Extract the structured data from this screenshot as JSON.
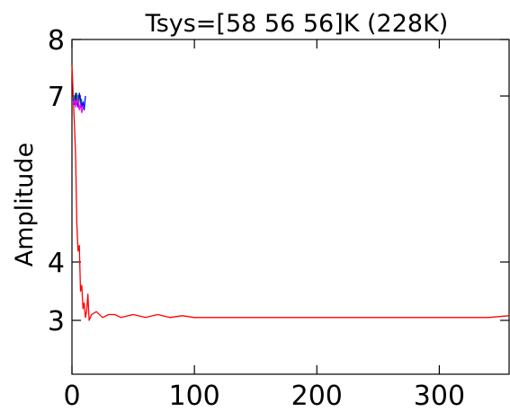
{
  "chart_data": {
    "type": "line",
    "title": "Tsys=[58 56 56]K (228K)",
    "xlabel": "",
    "ylabel": "Amplitude",
    "xlim": [
      0,
      357
    ],
    "ylim": [
      2,
      8
    ],
    "x_ticks": [
      0,
      100,
      200,
      300
    ],
    "y_ticks": [
      3,
      4,
      7,
      8
    ],
    "grid": false,
    "legend": "none",
    "colors": {
      "red": "#ff0000",
      "green": "#00b000",
      "blue": "#0000ff",
      "magenta": "#ff00ff",
      "axes": "#000000"
    },
    "series": [
      {
        "color": "#ff0000",
        "x": [
          0,
          1,
          2,
          3,
          4,
          5,
          6,
          7,
          8,
          9,
          10,
          11,
          12,
          13,
          14,
          16,
          20,
          25,
          30,
          35,
          40,
          50,
          60,
          70,
          80,
          90,
          100,
          120,
          140,
          160,
          180,
          200,
          220,
          240,
          260,
          280,
          300,
          320,
          340,
          357
        ],
        "y": [
          7.55,
          7.0,
          6.5,
          5.9,
          4.7,
          4.2,
          4.3,
          3.5,
          3.6,
          3.2,
          3.3,
          3.05,
          3.15,
          3.45,
          3.0,
          3.1,
          3.15,
          3.05,
          3.1,
          3.1,
          3.05,
          3.1,
          3.05,
          3.1,
          3.05,
          3.08,
          3.05,
          3.05,
          3.05,
          3.05,
          3.05,
          3.05,
          3.05,
          3.05,
          3.05,
          3.05,
          3.05,
          3.05,
          3.05,
          3.08
        ]
      },
      {
        "color": "#00b000",
        "x": [
          1,
          2,
          3,
          4,
          5,
          6,
          7,
          8
        ],
        "y": [
          6.9,
          7.0,
          6.85,
          7.05,
          6.9,
          7.0,
          6.85,
          6.95
        ]
      },
      {
        "color": "#0000ff",
        "x": [
          1,
          2,
          3,
          4,
          5,
          6,
          7,
          8,
          9,
          10,
          11
        ],
        "y": [
          6.95,
          6.85,
          7.05,
          6.9,
          6.8,
          7.05,
          6.95,
          6.8,
          6.9,
          6.75,
          7.0
        ]
      },
      {
        "color": "#ff00ff",
        "x": [
          1,
          2,
          3,
          4,
          5,
          6,
          7,
          8,
          9
        ],
        "y": [
          6.85,
          6.95,
          6.8,
          6.9,
          6.95,
          6.75,
          6.85,
          6.7,
          6.8
        ]
      }
    ]
  }
}
